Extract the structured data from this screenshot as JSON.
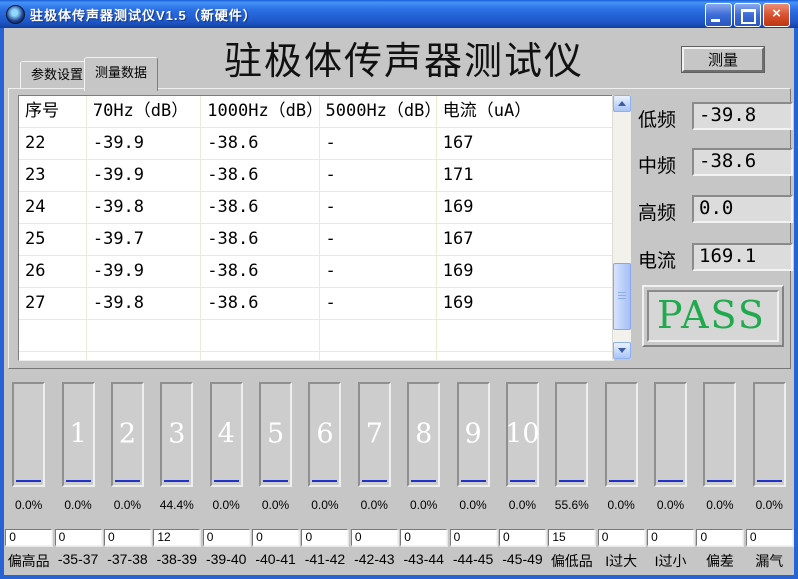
{
  "window": {
    "title": "驻极体传声器测试仪V1.5（新硬件）",
    "minimize": "minimize",
    "maximize": "maximize",
    "close": "close"
  },
  "tabs": {
    "param": "参数设置",
    "data": "测量数据"
  },
  "header": {
    "title": "驻极体传声器测试仪",
    "measure": "测量"
  },
  "table": {
    "columns": [
      "序号",
      "70Hz（dB）",
      "1000Hz（dB）",
      "5000Hz（dB）",
      "电流（uA）"
    ],
    "rows": [
      [
        "22",
        "-39.9",
        "-38.6",
        "-",
        "167"
      ],
      [
        "23",
        "-39.9",
        "-38.6",
        "-",
        "171"
      ],
      [
        "24",
        "-39.8",
        "-38.6",
        "-",
        "169"
      ],
      [
        "25",
        "-39.7",
        "-38.6",
        "-",
        "167"
      ],
      [
        "26",
        "-39.9",
        "-38.6",
        "-",
        "169"
      ],
      [
        "27",
        "-39.8",
        "-38.6",
        "-",
        "169"
      ]
    ]
  },
  "readouts": [
    {
      "label": "低频",
      "value": "-39.8"
    },
    {
      "label": "中频",
      "value": "-38.6"
    },
    {
      "label": "高频",
      "value": "0.0"
    },
    {
      "label": "电流",
      "value": "169.1"
    }
  ],
  "result": {
    "text": "PASS",
    "color": "#21a94e"
  },
  "distribution": {
    "columns": [
      {
        "bar_number": "",
        "percent": "0.0%",
        "count": "0",
        "label": "偏高品"
      },
      {
        "bar_number": "1",
        "percent": "0.0%",
        "count": "0",
        "label": "-35-37"
      },
      {
        "bar_number": "2",
        "percent": "0.0%",
        "count": "0",
        "label": "-37-38"
      },
      {
        "bar_number": "3",
        "percent": "44.4%",
        "count": "12",
        "label": "-38-39"
      },
      {
        "bar_number": "4",
        "percent": "0.0%",
        "count": "0",
        "label": "-39-40"
      },
      {
        "bar_number": "5",
        "percent": "0.0%",
        "count": "0",
        "label": "-40-41"
      },
      {
        "bar_number": "6",
        "percent": "0.0%",
        "count": "0",
        "label": "-41-42"
      },
      {
        "bar_number": "7",
        "percent": "0.0%",
        "count": "0",
        "label": "-42-43"
      },
      {
        "bar_number": "8",
        "percent": "0.0%",
        "count": "0",
        "label": "-43-44"
      },
      {
        "bar_number": "9",
        "percent": "0.0%",
        "count": "0",
        "label": "-44-45"
      },
      {
        "bar_number": "10",
        "percent": "0.0%",
        "count": "0",
        "label": "-45-49"
      },
      {
        "bar_number": "",
        "percent": "55.6%",
        "count": "15",
        "label": "偏低品"
      },
      {
        "bar_number": "",
        "percent": "0.0%",
        "count": "0",
        "label": "I过大"
      },
      {
        "bar_number": "",
        "percent": "0.0%",
        "count": "0",
        "label": "I过小"
      },
      {
        "bar_number": "",
        "percent": "0.0%",
        "count": "0",
        "label": "偏差"
      },
      {
        "bar_number": "",
        "percent": "0.0%",
        "count": "0",
        "label": "漏气"
      }
    ]
  },
  "colors": {
    "titlebar_blue": "#2863d6",
    "pass_green": "#21a94e",
    "bar_level_blue": "#2233cc",
    "grid_line": "#efe8d4"
  }
}
